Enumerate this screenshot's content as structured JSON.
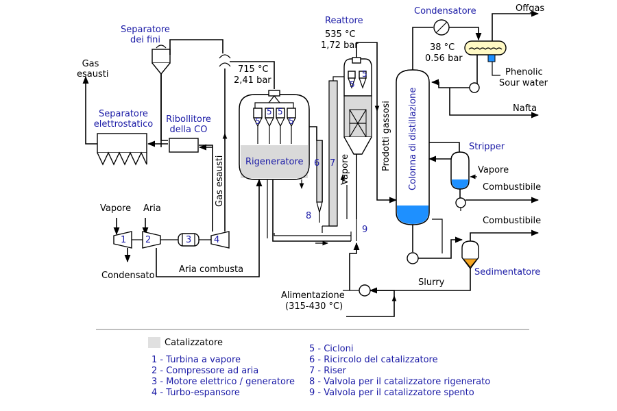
{
  "equipment": {
    "separatore_fini": "Separatore dei fini",
    "gas_esausti_left": "Gas esausti",
    "separatore_elettrostatico": "Separatore elettrostatico",
    "ribollitore": "Ribollitore della CO",
    "gas_esausti_vert": "Gas esausti",
    "rigeneratore_temp": "715 °C",
    "rigeneratore_press": "2,41 bar",
    "rigeneratore": "Rigeneratore",
    "reattore": "Reattore",
    "reattore_temp": "535 °C",
    "reattore_press": "1,72 bar",
    "vapore_riser": "Vapore",
    "prodotti_gassosi": "Prodotti gassosi",
    "colonna": "Colonna di distillazione",
    "condensatore": "Condensatore",
    "cond_temp": "38 °C",
    "cond_press": "0.56 bar",
    "offgas": "Offgas",
    "phenolic": "Phenolic",
    "sour_water": "Sour water",
    "nafta": "Nafta",
    "stripper": "Stripper",
    "stripper_vapore": "Vapore",
    "combustibile_1": "Combustibile",
    "combustibile_2": "Combustibile",
    "sedimentatore": "Sedimentatore",
    "slurry": "Slurry",
    "alimentazione": "Alimentazione",
    "alimentazione_temp": "(315-430 °C)",
    "vapore_in": "Vapore",
    "aria_in": "Aria",
    "condensato": "Condensato",
    "aria_combusta": "Aria combusta"
  },
  "numbers": {
    "n1": "1",
    "n2": "2",
    "n3": "3",
    "n4": "4",
    "n5a": "5",
    "n5b": "5",
    "n5c": "5",
    "n5d": "5",
    "n5e": "5",
    "n5f": "5",
    "n6": "6",
    "n7": "7",
    "n8": "8",
    "n9": "9"
  },
  "legend": {
    "catalyst": "Catalizzatore",
    "items": [
      "1 - Turbina a vapore",
      "2 - Compressore ad aria",
      "3 - Motore elettrico / generatore",
      "4 - Turbo-espansore",
      "5 - Cicloni",
      "6 - Ricircolo del catalizzatore",
      "7 - Riser",
      "8 - Valvola per il catalizzatore rigenerato",
      "9 - Valvola per il catalizzatore spento"
    ]
  },
  "colors": {
    "label_blue": "#1a1aa6",
    "liquid_blue": "#1e90ff",
    "catalyst_gray": "#d9d9d9",
    "sediment_orange": "#f5a623",
    "condenser_yellow": "#fff9c4"
  }
}
